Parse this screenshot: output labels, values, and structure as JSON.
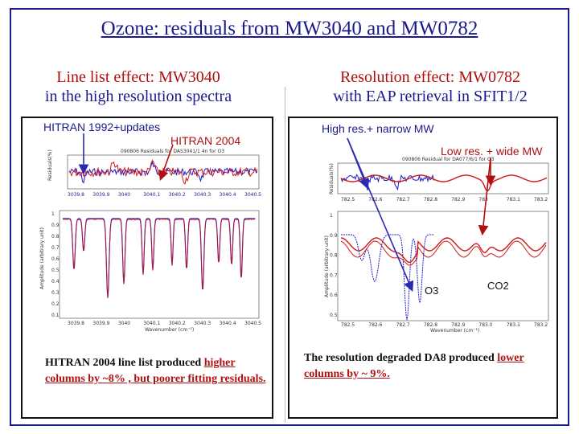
{
  "slide": {
    "title": "Ozone: residuals from MW3040 and MW0782"
  },
  "left": {
    "heading_line1": "Line list effect: MW3040",
    "heading_line2": "in the high resolution spectra",
    "label_hitran1992": "HITRAN 1992+updates",
    "label_hitran2004": "HITRAN 2004",
    "plot_title": "090806 Residuals for DAS3041/1 4n for O3",
    "res_ylabel": "Residuals(%)",
    "res_xticks": [
      "3039.8",
      "3039.9",
      "3040",
      "3040.1",
      "3040.2",
      "3040.3",
      "3040.4",
      "3040.5"
    ],
    "spec_ylabel": "Amplitude (arbitrary unit)",
    "spec_xticks": [
      "3039.8",
      "3039.9",
      "3040",
      "3040.1",
      "3040.2",
      "3040.3",
      "3040.4",
      "3040.5"
    ],
    "spec_yticks": [
      "1",
      "0.9",
      "0.8",
      "0.7",
      "0.6",
      "0.5",
      "0.4",
      "0.3",
      "0.2",
      "0.1"
    ],
    "xlabel": "Wavenumber (cm⁻¹)",
    "caption_part1": "HITRAN 2004 line list produced ",
    "caption_highlight": "higher columns by ~8%",
    "caption_part2": " , but poorer fitting residuals."
  },
  "right": {
    "heading_line1": "Resolution effect: MW0782",
    "heading_line2": "with EAP retrieval in SFIT1/2",
    "label_highres": "High res.+ narrow MW",
    "label_lowres": "Low res. + wide MW",
    "plot_title": "090806 Residual for DA077/6/1 for O3",
    "res_ylabel": "Residuals(%)",
    "res_xticks": [
      "782.5",
      "782.6",
      "782.7",
      "782.8",
      "782.9",
      "783",
      "783.1",
      "783.2"
    ],
    "spec_ylabel": "Amplitude (arbitrary unit)",
    "spec_xticks": [
      "782.5",
      "782.6",
      "782.7",
      "782.8",
      "782.9",
      "783.0",
      "783.1",
      "783.2"
    ],
    "spec_yticks": [
      "1",
      "0.9",
      "0.8",
      "0.7",
      "0.6",
      "0.5"
    ],
    "xlabel": "Wavenumber (cm⁻¹)",
    "label_o3": "O3",
    "label_co2": "CO2",
    "caption_part1": "The resolution degraded DA8 produced ",
    "caption_highlight": "lower columns by ~ 9%.",
    "caption_part2": ""
  },
  "colors": {
    "title_blue": "#1a1a8c",
    "heading_red": "#b01010",
    "series_blue": "#1a1acc",
    "series_red": "#d01818",
    "arrow_blue": "#2a2ab0",
    "arrow_red": "#b01010"
  }
}
